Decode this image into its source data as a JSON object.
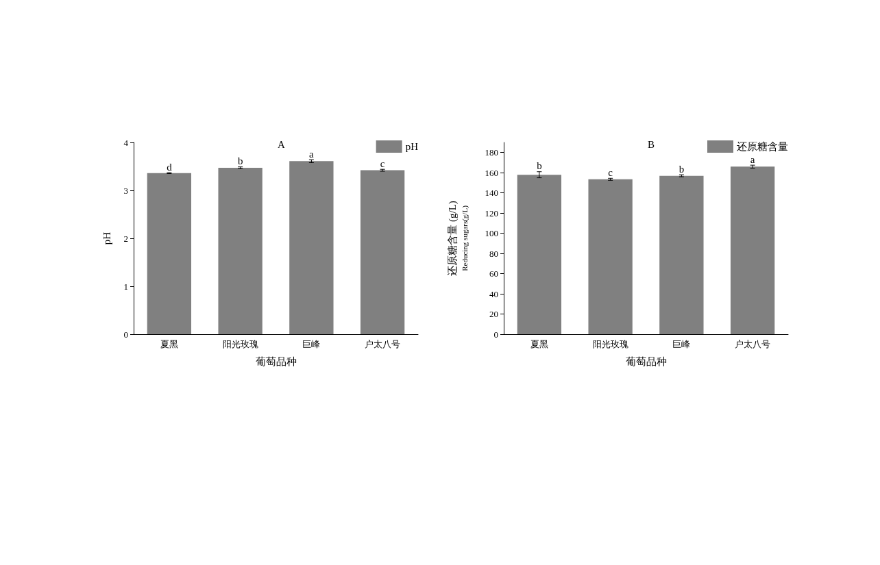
{
  "chart_data": [
    {
      "type": "bar",
      "title": "A",
      "xlabel": "葡萄品种",
      "ylabel": "pH",
      "categories": [
        "夏黑",
        "阳光玫瑰",
        "巨峰",
        "户太八号"
      ],
      "series": [
        {
          "name": "pH",
          "color": "#808080",
          "values": [
            3.36,
            3.47,
            3.61,
            3.42
          ],
          "errors": [
            0.01,
            0.02,
            0.03,
            0.02
          ]
        }
      ],
      "ylim": [
        0,
        4
      ],
      "yticks": [
        0,
        1,
        2,
        3,
        4
      ],
      "grid": false,
      "legend": "top right",
      "annotations": [
        {
          "text": "d",
          "x": "夏黑",
          "y": 3.37
        },
        {
          "text": "b",
          "x": "阳光玫瑰",
          "y": 3.49
        },
        {
          "text": "a",
          "x": "巨峰",
          "y": 3.64
        },
        {
          "text": "c",
          "x": "户太八号",
          "y": 3.44
        }
      ]
    },
    {
      "type": "bar",
      "title": "B",
      "xlabel": "葡萄品种",
      "ylabel": "还原糖含量 (g/L)\nReducing sugars(g/L)",
      "categories": [
        "夏黑",
        "阳光玫瑰",
        "巨峰",
        "户太八号"
      ],
      "series": [
        {
          "name": "还原糖含量",
          "color": "#808080",
          "values": [
            158,
            153.5,
            157,
            166
          ],
          "errors": [
            3,
            1,
            1,
            1.5
          ]
        }
      ],
      "ylim": [
        0,
        190
      ],
      "yticks": [
        0,
        20,
        40,
        60,
        80,
        100,
        120,
        140,
        160,
        180
      ],
      "grid": false,
      "legend": "top right",
      "annotations": [
        {
          "text": "b",
          "x": "夏黑",
          "y": 161
        },
        {
          "text": "c",
          "x": "阳光玫瑰",
          "y": 154.5
        },
        {
          "text": "b",
          "x": "巨峰",
          "y": 158
        },
        {
          "text": "a",
          "x": "户太八号",
          "y": 167.5
        }
      ]
    }
  ]
}
